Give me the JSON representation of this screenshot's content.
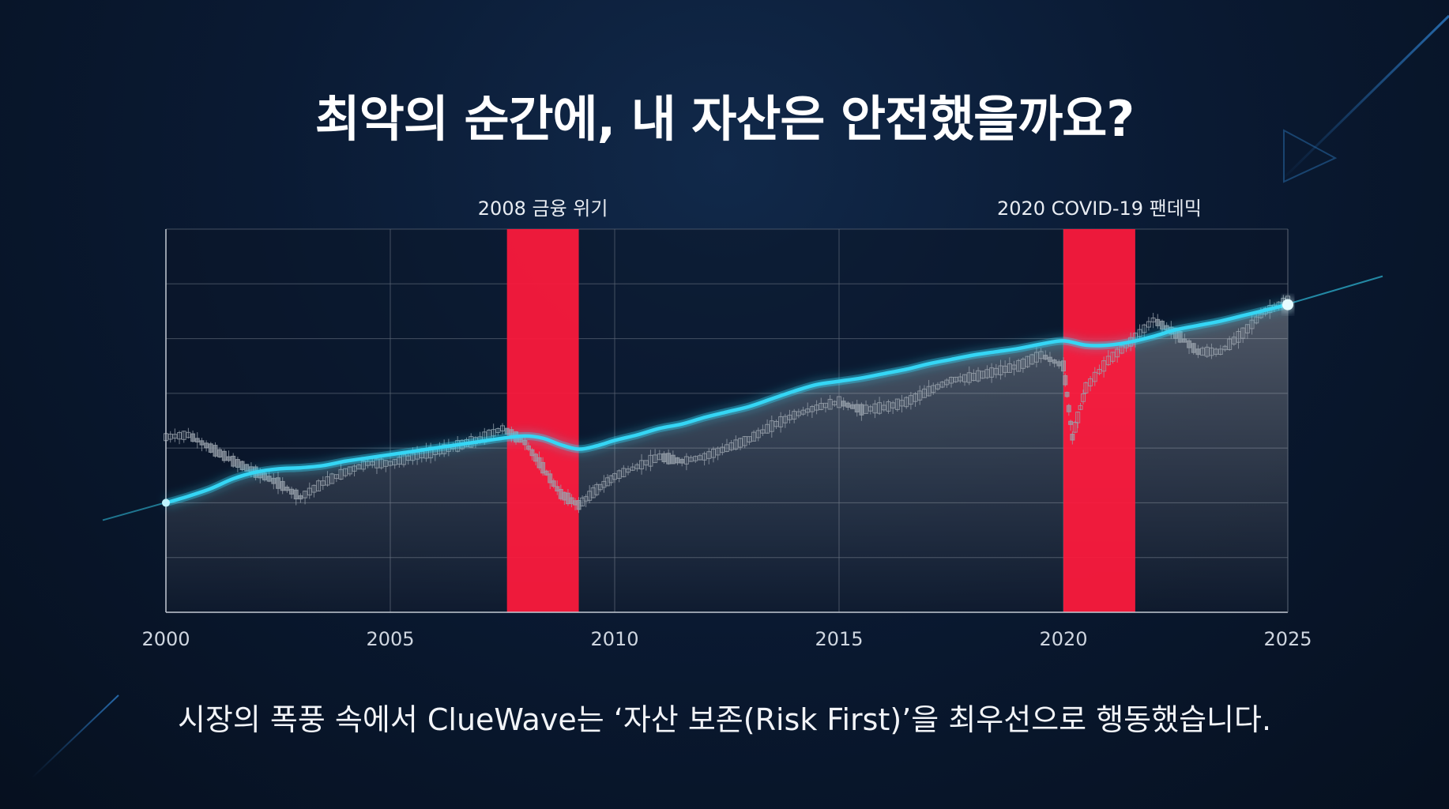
{
  "title": "최악의 순간에, 내 자산은 안전했을까요?",
  "subtitle": "시장의 폭풍 속에서 ClueWave는 ‘자산 보존(Risk First)’을 최우선으로 행동했습니다.",
  "colors": {
    "background": "#0a1a33",
    "line": "#35d6f5",
    "crisis": "#ff1a3c",
    "candles": "#9aa3ad",
    "grid": "#5d6776"
  },
  "chart_data": {
    "type": "line",
    "xlim": [
      2000,
      2025
    ],
    "x_ticks": [
      "2000",
      "2005",
      "2010",
      "2015",
      "2020",
      "2025"
    ],
    "grid": true,
    "crisis_periods": [
      {
        "label": "2008 금융 위기",
        "start": 2007.6,
        "end": 2009.2
      },
      {
        "label": "2020 COVID-19 팬데믹",
        "start": 2020.0,
        "end": 2021.6
      }
    ],
    "series": [
      {
        "x": [
          2000.0,
          2000.5,
          2001.0,
          2001.5,
          2002.0,
          2002.5,
          2003.0,
          2003.5,
          2004.0,
          2004.5,
          2005.0,
          2005.5,
          2006.0,
          2006.5,
          2007.0,
          2007.5,
          2008.0,
          2008.4,
          2008.8,
          2009.2,
          2009.6,
          2010.0,
          2010.5,
          2011.0,
          2011.5,
          2012.0,
          2012.5,
          2013.0,
          2013.5,
          2014.0,
          2014.5,
          2015.0,
          2015.5,
          2016.0,
          2016.5,
          2017.0,
          2017.5,
          2018.0,
          2018.5,
          2019.0,
          2019.5,
          2020.0,
          2020.5,
          2021.0,
          2021.5,
          2022.0,
          2022.5,
          2023.0,
          2023.5,
          2024.0,
          2024.5,
          2025.0
        ],
        "y": [
          1.0,
          1.06,
          1.13,
          1.22,
          1.28,
          1.31,
          1.32,
          1.34,
          1.38,
          1.41,
          1.44,
          1.47,
          1.5,
          1.53,
          1.56,
          1.59,
          1.61,
          1.59,
          1.53,
          1.49,
          1.52,
          1.57,
          1.62,
          1.68,
          1.72,
          1.78,
          1.83,
          1.88,
          1.95,
          2.02,
          2.08,
          2.11,
          2.14,
          2.18,
          2.22,
          2.27,
          2.31,
          2.35,
          2.38,
          2.41,
          2.45,
          2.48,
          2.44,
          2.44,
          2.47,
          2.52,
          2.58,
          2.62,
          2.66,
          2.71,
          2.76,
          2.81
        ]
      },
      {
        "type": "candlestick",
        "x": [
          2000.0,
          2000.5,
          2001.0,
          2001.5,
          2002.0,
          2002.5,
          2003.0,
          2003.5,
          2004.0,
          2004.5,
          2005.0,
          2005.5,
          2006.0,
          2006.5,
          2007.0,
          2007.5,
          2008.0,
          2008.4,
          2008.8,
          2009.2,
          2009.6,
          2010.0,
          2010.5,
          2011.0,
          2011.5,
          2012.0,
          2012.5,
          2013.0,
          2013.5,
          2014.0,
          2014.5,
          2015.0,
          2015.5,
          2016.0,
          2016.5,
          2017.0,
          2017.5,
          2018.0,
          2018.5,
          2019.0,
          2019.5,
          2020.0,
          2020.2,
          2020.5,
          2021.0,
          2021.5,
          2022.0,
          2022.5,
          2023.0,
          2023.5,
          2024.0,
          2024.5,
          2025.0
        ],
        "y": [
          1.6,
          1.62,
          1.5,
          1.38,
          1.28,
          1.18,
          1.05,
          1.18,
          1.28,
          1.36,
          1.36,
          1.42,
          1.47,
          1.52,
          1.58,
          1.68,
          1.55,
          1.32,
          1.08,
          0.98,
          1.12,
          1.24,
          1.33,
          1.42,
          1.38,
          1.42,
          1.5,
          1.58,
          1.7,
          1.8,
          1.87,
          1.92,
          1.85,
          1.87,
          1.92,
          2.02,
          2.12,
          2.15,
          2.2,
          2.25,
          2.35,
          2.25,
          1.6,
          2.05,
          2.3,
          2.47,
          2.67,
          2.55,
          2.38,
          2.38,
          2.55,
          2.75,
          2.85
        ]
      }
    ]
  }
}
